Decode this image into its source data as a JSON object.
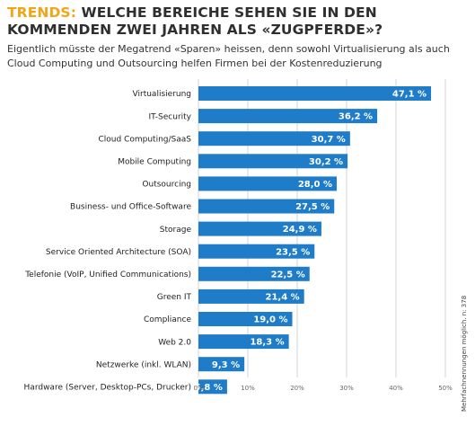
{
  "title_accent": "TRENDS:",
  "title_rest": " WELCHE BEREICHE SEHEN SIE IN DEN KOMMENDEN ZWEI JAHREN ALS «ZUGPFERDE»?",
  "subtitle": "Eigentlich müsste der Megatrend «Sparen» heissen, denn sowohl Virtualisierung als auch Cloud Computing und Outsourcing helfen Firmen bei der Kostenreduzierung",
  "side_note": "Mehrfachnennungen möglich. n: 378",
  "colors": {
    "bar": "#1e7cc8",
    "accent": "#f2a516"
  },
  "chart_data": {
    "type": "bar",
    "orientation": "horizontal",
    "categories": [
      "Virtualisierung",
      "IT-Security",
      "Cloud Computing/SaaS",
      "Mobile Computing",
      "Outsourcing",
      "Business- und Office-Software",
      "Storage",
      "Service Oriented Architecture (SOA)",
      "Telefonie (VoIP, Unified Communications)",
      "Green IT",
      "Compliance",
      "Web 2.0",
      "Netzwerke (inkl. WLAN)",
      "Hardware (Server, Desktop-PCs, Drucker)"
    ],
    "values": [
      47.1,
      36.2,
      30.7,
      30.2,
      28.0,
      27.5,
      24.9,
      23.5,
      22.5,
      21.4,
      19.0,
      18.3,
      9.3,
      5.8
    ],
    "value_labels": [
      "47,1 %",
      "36,2 %",
      "30,7 %",
      "30,2 %",
      "28,0 %",
      "27,5 %",
      "24,9 %",
      "23,5 %",
      "22,5 %",
      "21,4 %",
      "19,0 %",
      "18,3 %",
      "9,3 %",
      "5,8 %"
    ],
    "xlim": [
      0,
      50
    ],
    "xticks": [
      0,
      10,
      20,
      30,
      40,
      50
    ],
    "xtick_labels": [
      "0%",
      "10%",
      "20%",
      "30%",
      "40%",
      "50%"
    ],
    "grid": true
  }
}
